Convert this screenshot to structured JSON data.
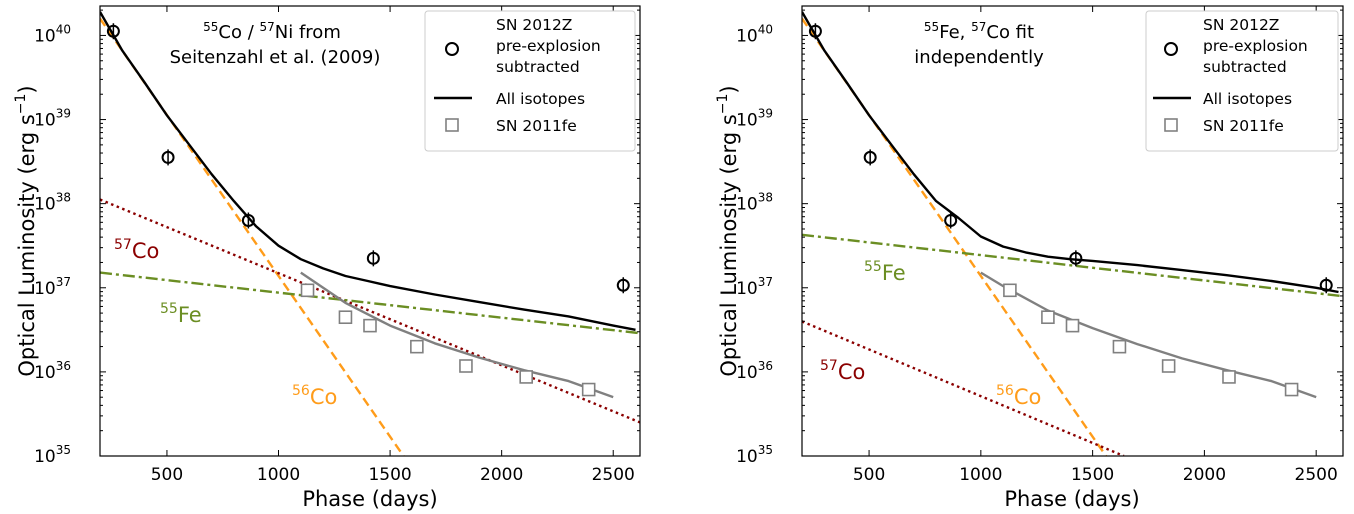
{
  "chart_data": [
    {
      "type": "line",
      "panel": "left",
      "xlabel": "Phase (days)",
      "ylabel_main": "Optical Luminosity (erg s",
      "ylabel_sup": "−1",
      "ylabel_close": ")",
      "xlim": [
        200,
        2620
      ],
      "ylim_log10": [
        35,
        40.35
      ],
      "yscale": "log",
      "grid": false,
      "legend_placement": "top-right",
      "xticks": [
        500,
        1000,
        1500,
        2000,
        2500
      ],
      "yticks_exp": [
        35,
        36,
        37,
        38,
        39,
        40
      ],
      "ytick_base": "10",
      "annotation": {
        "line1_sup1": "55",
        "line1_a": "Co / ",
        "line1_sup2": "57",
        "line1_b": "Ni from",
        "line2": "Seitenzahl et al. (2009)"
      },
      "legend": {
        "sn2012z_line1": "SN 2012Z",
        "sn2012z_line2": "pre-explosion",
        "sn2012z_line3": "subtracted",
        "all_isotopes": "All isotopes",
        "sn2011fe": "SN 2011fe"
      },
      "labels": {
        "co57_sup": "57",
        "co57": "Co",
        "fe55_sup": "55",
        "fe55": "Fe",
        "co56_sup": "56",
        "co56": "Co"
      },
      "colors": {
        "co56": "#ff9c1a",
        "co57": "#8b0000",
        "fe55": "#6b8e23",
        "all": "#000000",
        "sn2011fe": "#808080"
      },
      "observations_sn2012z": [
        {
          "phase": 260,
          "logL": 40.05
        },
        {
          "phase": 505,
          "logL": 38.55
        },
        {
          "phase": 865,
          "logL": 37.8
        },
        {
          "phase": 1425,
          "logL": 37.35
        },
        {
          "phase": 2545,
          "logL": 37.03
        }
      ],
      "observations_sn2011fe": [
        {
          "phase": 1130,
          "logL": 36.97
        },
        {
          "phase": 1300,
          "logL": 36.65
        },
        {
          "phase": 1410,
          "logL": 36.55
        },
        {
          "phase": 1620,
          "logL": 36.3
        },
        {
          "phase": 1840,
          "logL": 36.07
        },
        {
          "phase": 2110,
          "logL": 35.94
        },
        {
          "phase": 2390,
          "logL": 35.79
        }
      ],
      "series": [
        {
          "key": "co56",
          "x": [
            200,
            1560
          ],
          "logL": [
            40.2,
            35.0
          ]
        },
        {
          "key": "co57",
          "x": [
            200,
            2620
          ],
          "logL": [
            38.05,
            35.4
          ]
        },
        {
          "key": "fe55",
          "x": [
            200,
            2620
          ],
          "logL": [
            37.18,
            36.46
          ]
        },
        {
          "key": "sn2011fe",
          "x": [
            1100,
            1300,
            1500,
            1700,
            1900,
            2100,
            2300,
            2500
          ],
          "logL": [
            37.18,
            36.82,
            36.55,
            36.34,
            36.17,
            36.02,
            35.89,
            35.7
          ]
        },
        {
          "key": "all",
          "x": [
            200,
            300,
            400,
            500,
            600,
            700,
            800,
            900,
            1000,
            1100,
            1200,
            1300,
            1400,
            1500,
            1700,
            1900,
            2100,
            2300,
            2500,
            2600
          ],
          "logL": [
            40.28,
            39.82,
            39.44,
            39.05,
            38.7,
            38.35,
            38.03,
            37.73,
            37.5,
            37.34,
            37.23,
            37.14,
            37.08,
            37.02,
            36.92,
            36.83,
            36.74,
            36.66,
            36.55,
            36.5
          ]
        }
      ]
    },
    {
      "type": "line",
      "panel": "right",
      "xlabel": "Phase (days)",
      "ylabel_main": "Optical Luminosity (erg s",
      "ylabel_sup": "−1",
      "ylabel_close": ")",
      "xlim": [
        200,
        2620
      ],
      "ylim_log10": [
        35,
        40.35
      ],
      "yscale": "log",
      "grid": false,
      "legend_placement": "top-right",
      "xticks": [
        500,
        1000,
        1500,
        2000,
        2500
      ],
      "yticks_exp": [
        35,
        36,
        37,
        38,
        39,
        40
      ],
      "ytick_base": "10",
      "annotation": {
        "line1_sup1": "55",
        "line1_a": "Fe, ",
        "line1_sup2": "57",
        "line1_b": "Co fit",
        "line2": "independently"
      },
      "legend": {
        "sn2012z_line1": "SN 2012Z",
        "sn2012z_line2": "pre-explosion",
        "sn2012z_line3": "subtracted",
        "all_isotopes": "All isotopes",
        "sn2011fe": "SN 2011fe"
      },
      "labels": {
        "co57_sup": "57",
        "co57": "Co",
        "fe55_sup": "55",
        "fe55": "Fe",
        "co56_sup": "56",
        "co56": "Co"
      },
      "colors": {
        "co56": "#ff9c1a",
        "co57": "#8b0000",
        "fe55": "#6b8e23",
        "all": "#000000",
        "sn2011fe": "#808080"
      },
      "observations_sn2012z": [
        {
          "phase": 260,
          "logL": 40.05
        },
        {
          "phase": 505,
          "logL": 38.55
        },
        {
          "phase": 865,
          "logL": 37.8
        },
        {
          "phase": 1425,
          "logL": 37.35
        },
        {
          "phase": 2545,
          "logL": 37.03
        }
      ],
      "observations_sn2011fe": [
        {
          "phase": 1130,
          "logL": 36.97
        },
        {
          "phase": 1300,
          "logL": 36.65
        },
        {
          "phase": 1410,
          "logL": 36.55
        },
        {
          "phase": 1620,
          "logL": 36.3
        },
        {
          "phase": 1840,
          "logL": 36.07
        },
        {
          "phase": 2110,
          "logL": 35.94
        },
        {
          "phase": 2390,
          "logL": 35.79
        }
      ],
      "series": [
        {
          "key": "co56",
          "x": [
            200,
            1560
          ],
          "logL": [
            40.2,
            35.0
          ]
        },
        {
          "key": "co57",
          "x": [
            200,
            1640
          ],
          "logL": [
            36.6,
            35.0
          ]
        },
        {
          "key": "fe55",
          "x": [
            200,
            2620
          ],
          "logL": [
            37.63,
            36.9
          ]
        },
        {
          "key": "sn2011fe",
          "x": [
            1000,
            1100,
            1300,
            1500,
            1700,
            1900,
            2100,
            2300,
            2500
          ],
          "logL": [
            37.18,
            37.02,
            36.73,
            36.52,
            36.33,
            36.16,
            36.02,
            35.89,
            35.7
          ]
        },
        {
          "key": "all",
          "x": [
            200,
            300,
            400,
            500,
            600,
            700,
            800,
            900,
            1000,
            1100,
            1200,
            1300,
            1400,
            1500,
            1700,
            1900,
            2100,
            2300,
            2500,
            2600
          ],
          "logL": [
            40.28,
            39.82,
            39.44,
            39.05,
            38.7,
            38.35,
            38.03,
            37.83,
            37.61,
            37.49,
            37.42,
            37.37,
            37.34,
            37.32,
            37.27,
            37.21,
            37.15,
            37.08,
            37.0,
            36.95
          ]
        }
      ]
    }
  ]
}
